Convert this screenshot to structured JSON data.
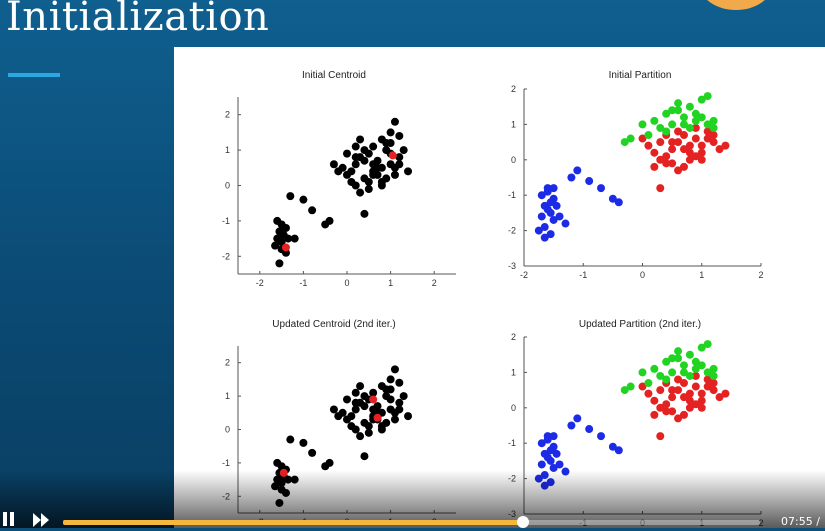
{
  "slide": {
    "title": "Initialization",
    "accent_color": "#2aa8e0",
    "background_color": "#0d4f7b"
  },
  "chart_data": [
    {
      "type": "scatter",
      "title": "Initial Centroid",
      "xlim": [
        -2.5,
        2.5
      ],
      "ylim": [
        -2.5,
        2.5
      ],
      "xticks": [
        "-2",
        "-1",
        "0",
        "1",
        "2"
      ],
      "yticks": [
        "2",
        "1",
        "0",
        "-1",
        "-2"
      ],
      "series": [
        {
          "color": "#000000",
          "x": [
            -1.6,
            -1.5,
            -1.4,
            -1.55,
            -1.45,
            -1.6,
            -1.5,
            -1.35,
            -1.5,
            -1.65,
            -1.4,
            -1.55,
            -1.2,
            -1.3,
            -1.0,
            -0.8,
            -0.5,
            -0.4,
            -0.3,
            -0.1,
            0.0,
            0.1,
            0.2,
            0.3,
            0.4,
            0.5,
            0.6,
            0.7,
            0.8,
            0.9,
            1.0,
            1.1,
            1.2,
            1.3,
            0.2,
            0.4,
            0.6,
            0.8,
            1.0,
            1.2,
            0.3,
            0.5,
            0.7,
            0.9,
            1.1,
            0.0,
            0.2,
            0.4,
            0.6,
            0.8,
            1.0,
            1.2,
            1.4,
            0.5,
            0.7,
            0.9,
            1.1,
            0.3,
            0.1,
            0.6,
            0.8,
            1.0,
            0.4,
            0.2,
            -0.2
          ],
          "y": [
            -1.0,
            -1.1,
            -1.2,
            -1.3,
            -1.4,
            -1.5,
            -1.6,
            -1.5,
            -1.8,
            -1.7,
            -1.9,
            -2.2,
            -1.5,
            -0.3,
            -0.4,
            -0.7,
            -1.1,
            -1.0,
            0.6,
            0.5,
            0.3,
            0.1,
            0.6,
            0.8,
            1.0,
            0.9,
            1.1,
            0.7,
            1.3,
            1.2,
            1.5,
            1.8,
            1.4,
            1.0,
            0.0,
            0.2,
            0.4,
            0.5,
            0.6,
            0.8,
            -0.2,
            0.1,
            0.3,
            0.2,
            0.5,
            0.9,
            1.1,
            0.7,
            0.3,
            0.0,
            0.9,
            0.6,
            0.4,
            -0.1,
            0.5,
            1.0,
            0.3,
            1.3,
            0.4,
            0.6,
            0.1,
            1.2,
            -0.8,
            0.8,
            0.4
          ]
        },
        {
          "color": "#e52222",
          "x": [
            -1.4,
            1.05
          ],
          "y": [
            -1.75,
            0.85
          ]
        }
      ]
    },
    {
      "type": "scatter",
      "title": "Initial Partition",
      "xlim": [
        -2,
        2
      ],
      "ylim": [
        -3,
        2
      ],
      "xticks": [
        "-2",
        "-1",
        "0",
        "1",
        "2"
      ],
      "yticks": [
        "2",
        "1",
        "0",
        "-1",
        "-2",
        "-3"
      ],
      "series": [
        {
          "color": "#1c2be5",
          "x": [
            -1.7,
            -1.6,
            -1.5,
            -1.65,
            -1.55,
            -1.7,
            -1.6,
            -1.5,
            -1.45,
            -1.65,
            -1.75,
            -1.55,
            -1.4,
            -1.6,
            -1.5,
            -1.2,
            -1.1,
            -0.9,
            -0.7,
            -0.5,
            -0.4,
            -1.3,
            -1.65,
            -1.55
          ],
          "y": [
            -1.0,
            -0.8,
            -1.1,
            -1.3,
            -1.5,
            -1.6,
            -1.4,
            -1.7,
            -1.3,
            -1.9,
            -2.0,
            -2.1,
            -1.6,
            -0.9,
            -0.8,
            -0.5,
            -0.3,
            -0.6,
            -0.8,
            -1.1,
            -1.2,
            -1.8,
            -2.2,
            -1.2
          ]
        },
        {
          "color": "#e52222",
          "x": [
            0.0,
            0.1,
            0.2,
            0.3,
            0.4,
            0.5,
            0.6,
            0.7,
            0.8,
            0.9,
            1.0,
            1.1,
            1.2,
            1.3,
            0.2,
            0.4,
            0.6,
            0.8,
            1.0,
            1.2,
            0.3,
            0.5,
            0.7,
            0.9,
            1.1,
            0.4,
            0.6,
            0.8,
            1.0,
            0.5,
            0.7,
            0.9,
            1.4,
            0.3
          ],
          "y": [
            0.6,
            0.4,
            0.2,
            0.0,
            -0.1,
            0.3,
            0.5,
            0.7,
            0.2,
            0.6,
            0.4,
            0.8,
            0.5,
            0.3,
            -0.2,
            0.1,
            -0.3,
            0.0,
            0.2,
            0.7,
            0.5,
            -0.1,
            0.3,
            0.1,
            0.6,
            0.7,
            0.8,
            0.4,
            0.0,
            0.5,
            -0.2,
            0.9,
            0.4,
            -0.8
          ]
        },
        {
          "color": "#22d422",
          "x": [
            0.0,
            0.2,
            0.4,
            0.6,
            0.8,
            1.0,
            1.2,
            0.3,
            0.5,
            0.7,
            0.9,
            1.1,
            0.1,
            0.4,
            0.6,
            0.8,
            1.0,
            1.2,
            0.5,
            0.7,
            0.9,
            1.1,
            -0.3,
            -0.2
          ],
          "y": [
            1.0,
            1.1,
            1.3,
            1.4,
            1.5,
            1.2,
            1.1,
            0.9,
            1.0,
            1.2,
            1.3,
            1.8,
            0.7,
            0.8,
            1.6,
            0.9,
            1.7,
            0.9,
            1.4,
            1.0,
            1.1,
            1.0,
            0.5,
            0.6
          ]
        }
      ]
    },
    {
      "type": "scatter",
      "title": "Updated Centroid (2nd iter.)",
      "xlim": [
        -2.5,
        2.5
      ],
      "ylim": [
        -2.5,
        2.5
      ],
      "xticks": [
        "-2",
        "-1",
        "0",
        "1",
        "2"
      ],
      "yticks": [
        "2",
        "1",
        "0",
        "-1",
        "-2"
      ],
      "series": [
        {
          "color": "#000000",
          "x": [
            -1.6,
            -1.5,
            -1.4,
            -1.55,
            -1.45,
            -1.6,
            -1.5,
            -1.35,
            -1.5,
            -1.65,
            -1.4,
            -1.55,
            -1.2,
            -1.3,
            -1.0,
            -0.8,
            -0.5,
            -0.4,
            -0.3,
            -0.1,
            0.0,
            0.1,
            0.2,
            0.3,
            0.4,
            0.5,
            0.6,
            0.7,
            0.8,
            0.9,
            1.0,
            1.1,
            1.2,
            1.3,
            0.2,
            0.4,
            0.6,
            0.8,
            1.0,
            1.2,
            0.3,
            0.5,
            0.7,
            0.9,
            1.1,
            0.0,
            0.2,
            0.4,
            0.6,
            0.8,
            1.0,
            1.2,
            1.4,
            0.5,
            0.7,
            0.9,
            1.1,
            0.3,
            0.1,
            0.6,
            0.8,
            1.0,
            0.4,
            0.2,
            -0.2
          ],
          "y": [
            -1.0,
            -1.1,
            -1.2,
            -1.3,
            -1.4,
            -1.5,
            -1.6,
            -1.5,
            -1.8,
            -1.7,
            -1.9,
            -2.2,
            -1.5,
            -0.3,
            -0.4,
            -0.7,
            -1.1,
            -1.0,
            0.6,
            0.5,
            0.3,
            0.1,
            0.6,
            0.8,
            1.0,
            0.9,
            1.1,
            0.7,
            1.3,
            1.2,
            1.5,
            1.8,
            1.4,
            1.0,
            0.0,
            0.2,
            0.4,
            0.5,
            0.6,
            0.8,
            -0.2,
            0.1,
            0.3,
            0.2,
            0.5,
            0.9,
            1.1,
            0.7,
            0.3,
            0.0,
            0.9,
            0.6,
            0.4,
            -0.1,
            0.5,
            1.0,
            0.3,
            1.3,
            0.4,
            0.6,
            0.1,
            1.2,
            -0.8,
            0.8,
            0.4
          ]
        },
        {
          "color": "#e52222",
          "x": [
            -1.45,
            0.6,
            0.7
          ],
          "y": [
            -1.3,
            0.9,
            0.35
          ]
        }
      ]
    },
    {
      "type": "scatter",
      "title": "Updated Partition (2nd iter.)",
      "xlim": [
        -2,
        2
      ],
      "ylim": [
        -3,
        2
      ],
      "xticks": [
        "-2",
        "-1",
        "0",
        "1",
        "2"
      ],
      "yticks": [
        "2",
        "1",
        "0",
        "-1",
        "-2",
        "-3"
      ],
      "series": [
        {
          "color": "#1c2be5",
          "x": [
            -1.7,
            -1.6,
            -1.5,
            -1.65,
            -1.55,
            -1.7,
            -1.6,
            -1.5,
            -1.45,
            -1.65,
            -1.75,
            -1.55,
            -1.4,
            -1.6,
            -1.5,
            -1.2,
            -1.1,
            -0.9,
            -0.7,
            -0.5,
            -0.4,
            -1.3,
            -1.65,
            -1.55
          ],
          "y": [
            -1.0,
            -0.8,
            -1.1,
            -1.3,
            -1.5,
            -1.6,
            -1.4,
            -1.7,
            -1.3,
            -1.9,
            -2.0,
            -2.1,
            -1.6,
            -0.9,
            -0.8,
            -0.5,
            -0.3,
            -0.6,
            -0.8,
            -1.1,
            -1.2,
            -1.8,
            -2.2,
            -1.2
          ]
        },
        {
          "color": "#e52222",
          "x": [
            0.0,
            0.1,
            0.2,
            0.3,
            0.4,
            0.5,
            0.6,
            0.7,
            0.8,
            0.9,
            1.0,
            1.1,
            1.2,
            1.3,
            0.2,
            0.4,
            0.6,
            0.8,
            1.0,
            1.2,
            0.3,
            0.5,
            0.7,
            0.9,
            1.1,
            0.4,
            0.6,
            0.8,
            1.0,
            0.5,
            0.7,
            0.9,
            1.4,
            0.3
          ],
          "y": [
            0.6,
            0.4,
            0.2,
            0.0,
            -0.1,
            0.3,
            0.5,
            0.7,
            0.2,
            0.6,
            0.4,
            0.8,
            0.5,
            0.3,
            -0.2,
            0.1,
            -0.3,
            0.0,
            0.2,
            0.7,
            0.5,
            -0.1,
            0.3,
            0.1,
            0.6,
            0.7,
            0.8,
            0.4,
            0.0,
            0.5,
            -0.2,
            0.9,
            0.4,
            -0.8
          ]
        },
        {
          "color": "#22d422",
          "x": [
            0.0,
            0.2,
            0.4,
            0.6,
            0.8,
            1.0,
            1.2,
            0.3,
            0.5,
            0.7,
            0.9,
            1.1,
            0.1,
            0.4,
            0.6,
            0.8,
            1.0,
            1.2,
            0.5,
            0.7,
            0.9,
            1.1,
            -0.3,
            -0.2
          ],
          "y": [
            1.0,
            1.1,
            1.3,
            1.4,
            1.5,
            1.2,
            1.1,
            0.9,
            1.0,
            1.2,
            1.3,
            1.8,
            0.7,
            0.8,
            1.6,
            0.9,
            1.7,
            0.9,
            1.4,
            1.0,
            1.1,
            1.0,
            0.5,
            0.6
          ]
        }
      ]
    }
  ],
  "player": {
    "pause_icon": "pause-icon",
    "forward_icon": "fast-forward-icon",
    "progress": 0.66,
    "progress_color": "#f6b73c",
    "time": "07:55 /"
  }
}
